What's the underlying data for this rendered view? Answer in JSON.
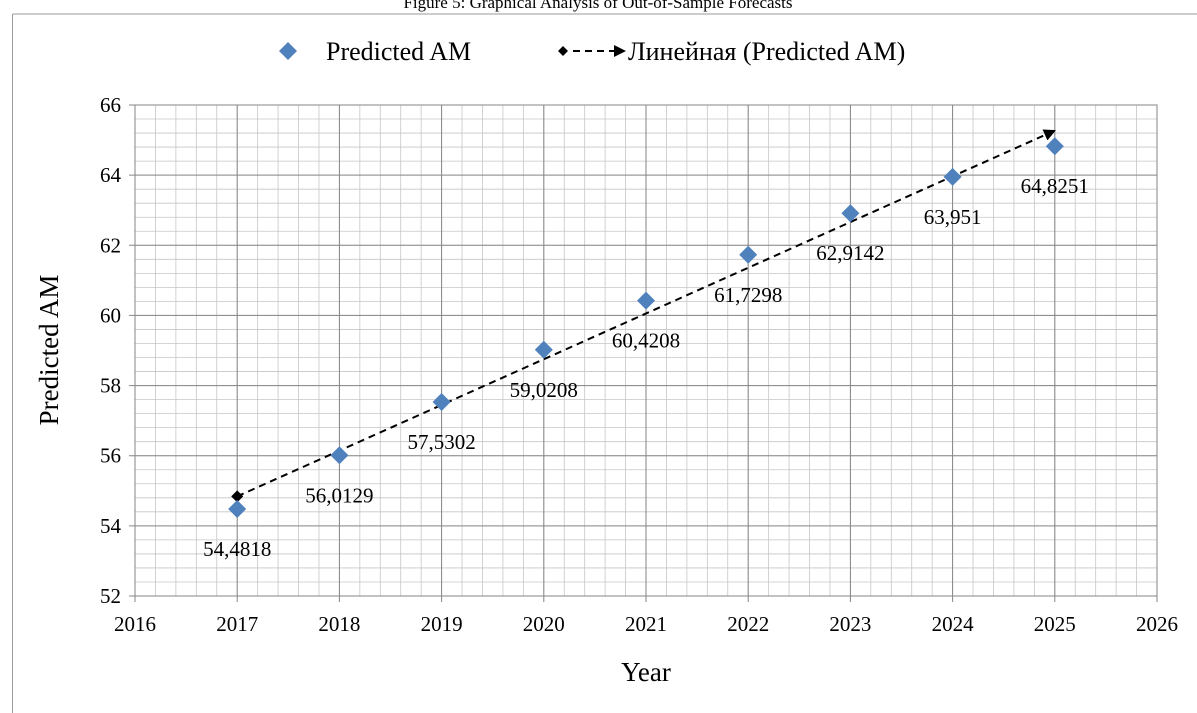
{
  "figure_caption": "Figure 5: Graphical Analysis of Out-of-Sample Forecasts",
  "chart_data": {
    "type": "scatter",
    "title": "",
    "xlabel": "Year",
    "ylabel": "Predicted AM",
    "xlim": [
      2016,
      2026
    ],
    "ylim": [
      52,
      66
    ],
    "x_ticks": [
      2016,
      2017,
      2018,
      2019,
      2020,
      2021,
      2022,
      2023,
      2024,
      2025,
      2026
    ],
    "y_ticks": [
      52,
      54,
      56,
      58,
      60,
      62,
      64,
      66
    ],
    "grid": "major and minor",
    "legend_position": "top",
    "series": [
      {
        "name": "Predicted AM",
        "marker": "diamond",
        "color": "#4F81BD",
        "x": [
          2017,
          2018,
          2019,
          2020,
          2021,
          2022,
          2023,
          2024,
          2025
        ],
        "y": [
          54.4818,
          56.0129,
          57.5302,
          59.0208,
          60.4208,
          61.7298,
          62.9142,
          63.951,
          64.8251
        ],
        "data_labels": [
          "54,4818",
          "56,0129",
          "57,5302",
          "59,0208",
          "60,4208",
          "61,7298",
          "62,9142",
          "63,951",
          "64,8251"
        ]
      }
    ],
    "trendline": {
      "name": "Линейная (Predicted AM)",
      "type": "linear",
      "style": "dashed",
      "color": "#000000",
      "x": [
        2017,
        2025
      ],
      "y": [
        54.84,
        65.27
      ]
    }
  }
}
